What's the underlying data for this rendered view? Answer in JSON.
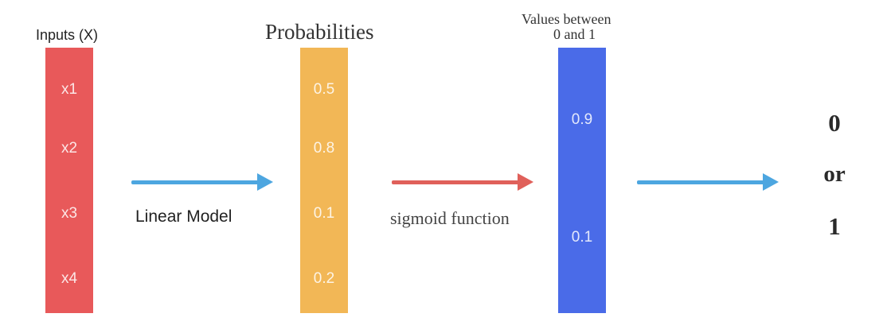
{
  "inputs": {
    "title": "Inputs (X)",
    "cells": [
      "x1",
      "x2",
      "x3",
      "x4"
    ],
    "color": "#e8595a"
  },
  "probabilities": {
    "title": "Probabilities",
    "cells": [
      "0.5",
      "0.8",
      "0.1",
      "0.2"
    ],
    "color": "#f2b756"
  },
  "values": {
    "title_line1": "Values between",
    "title_line2": "0 and 1",
    "cells": [
      "0.9",
      "0.1"
    ],
    "color": "#4a6be8"
  },
  "arrows": {
    "linear_label": "Linear Model",
    "sigmoid_label": "sigmoid function",
    "blue_color": "#4da6e0",
    "red_color": "#e0605a"
  },
  "output": {
    "top": "0",
    "middle": "or",
    "bottom": "1"
  }
}
